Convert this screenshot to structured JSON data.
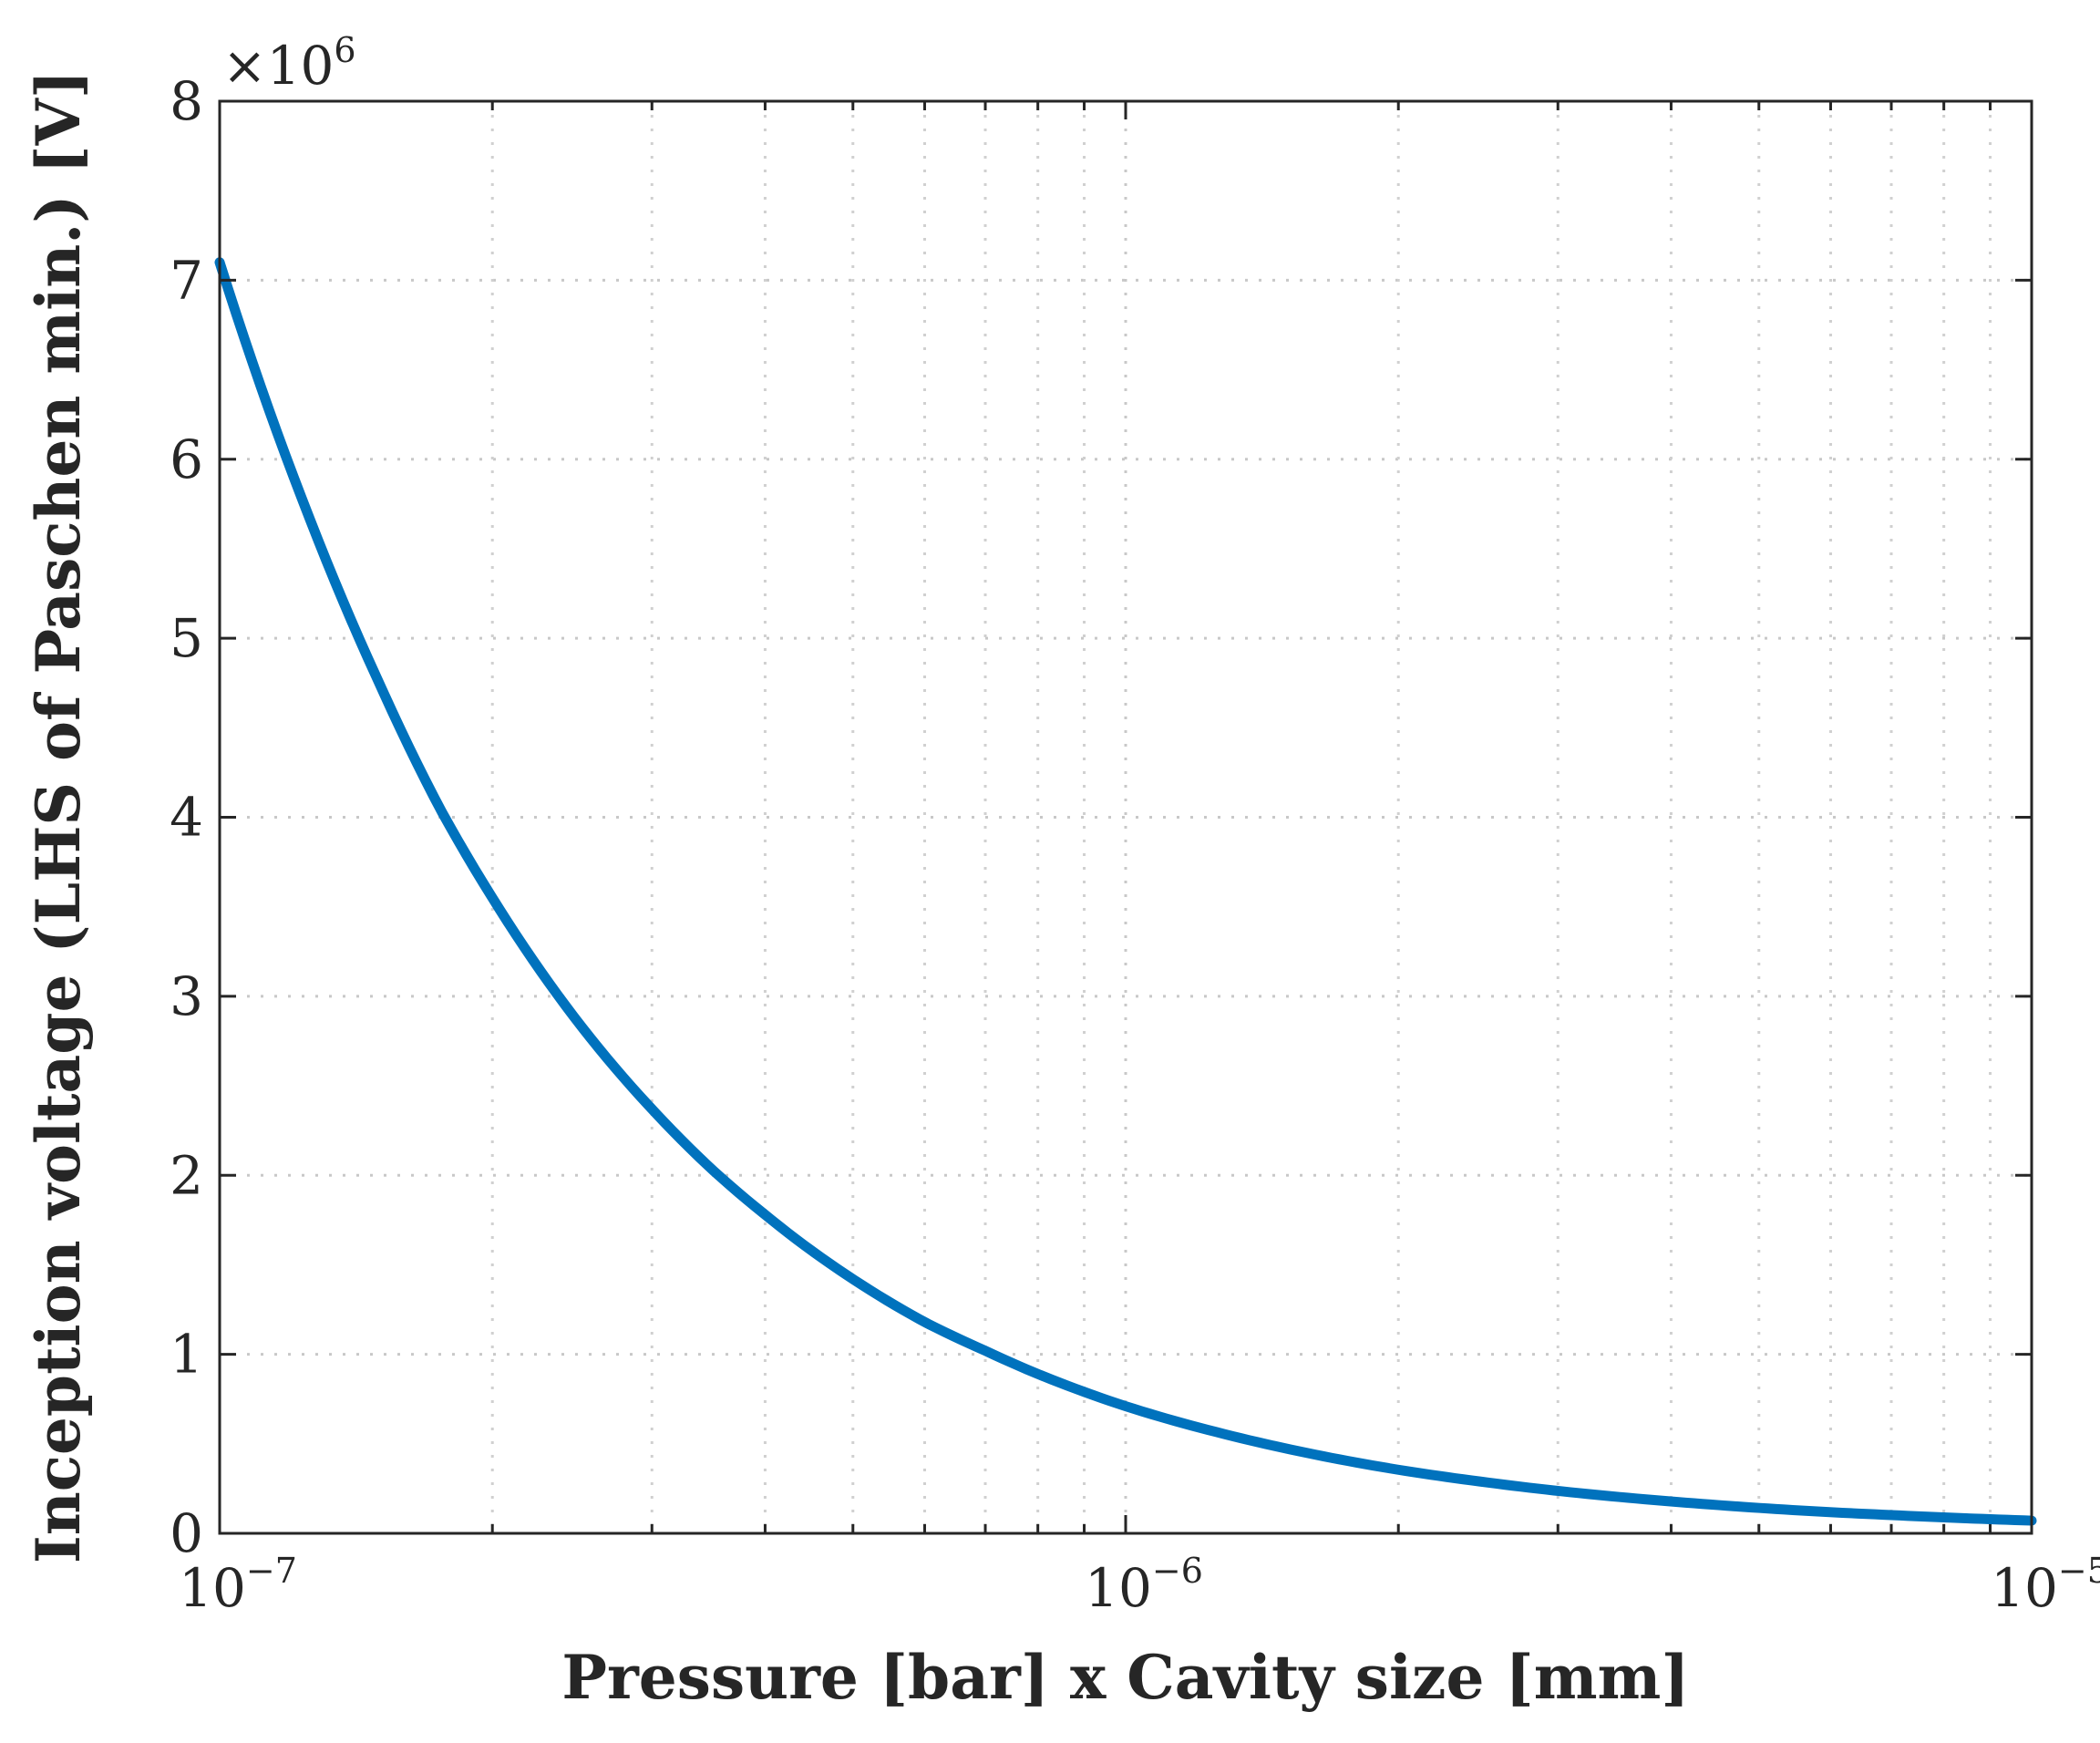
{
  "chart_data": {
    "type": "line",
    "title": "",
    "xlabel": "Pressure [bar] x Cavity size [mm]",
    "ylabel": "Inception voltage (LHS of Paschen min.) [V]",
    "xscale": "log",
    "xlim": [
      1e-07,
      1e-05
    ],
    "ylim": [
      0,
      8000000
    ],
    "y_multiplier_label": {
      "base": "×10",
      "exponent": "6"
    },
    "grid": true,
    "x_ticks": [
      {
        "value": 1e-07,
        "base": "10",
        "exponent": "−7"
      },
      {
        "value": 1e-06,
        "base": "10",
        "exponent": "−6"
      },
      {
        "value": 1e-05,
        "base": "10",
        "exponent": "−5"
      }
    ],
    "x_minor_ticks": [
      2e-07,
      3e-07,
      4e-07,
      5e-07,
      6e-07,
      7e-07,
      8e-07,
      9e-07,
      2e-06,
      3e-06,
      4e-06,
      5e-06,
      6e-06,
      7e-06,
      8e-06,
      9e-06
    ],
    "y_ticks": [
      {
        "value": 0,
        "label": "0"
      },
      {
        "value": 1000000,
        "label": "1"
      },
      {
        "value": 2000000,
        "label": "2"
      },
      {
        "value": 3000000,
        "label": "3"
      },
      {
        "value": 4000000,
        "label": "4"
      },
      {
        "value": 5000000,
        "label": "5"
      },
      {
        "value": 6000000,
        "label": "6"
      },
      {
        "value": 7000000,
        "label": "7"
      },
      {
        "value": 8000000,
        "label": "8"
      }
    ],
    "series": [
      {
        "name": "Inception voltage",
        "color": "#0072BD",
        "x": [
          1e-07,
          1.25e-07,
          1.5e-07,
          1.75e-07,
          2e-07,
          2.5e-07,
          3e-07,
          3.5e-07,
          4e-07,
          5e-07,
          6e-07,
          7e-07,
          8e-07,
          9e-07,
          1e-06,
          1.25e-06,
          1.5e-06,
          2e-06,
          2.5e-06,
          3e-06,
          4e-06,
          5e-06,
          6e-06,
          7e-06,
          8e-06,
          9e-06,
          1e-05
        ],
        "values": [
          7100000,
          5700000,
          4750000,
          4050000,
          3550000,
          2840000,
          2370000,
          2030000,
          1780000,
          1420000,
          1180000,
          1020000,
          890000,
          790000,
          710000,
          570000,
          475000,
          355000,
          285000,
          237000,
          178000,
          142000,
          118000,
          102000,
          89000,
          79000,
          71000
        ]
      }
    ]
  }
}
